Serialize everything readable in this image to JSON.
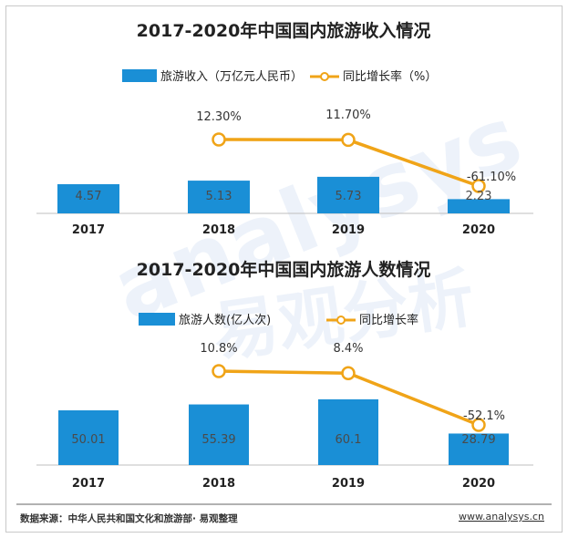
{
  "colors": {
    "bar": "#1a8fd6",
    "line": "#f0a418",
    "bar_label": "#4a4a4a",
    "axis_label": "#222222",
    "watermark": "#dfe9f6"
  },
  "watermark": {
    "latin": "analysys",
    "cn": "易观分析"
  },
  "chart_data": [
    {
      "type": "bar",
      "title": "2017-2020年中国国内旅游收入情况",
      "categories": [
        "2017",
        "2018",
        "2019",
        "2020"
      ],
      "series": [
        {
          "name": "旅游收入（万亿元人民币）",
          "type": "bar",
          "values": [
            4.57,
            5.13,
            5.73,
            2.23
          ],
          "labels": [
            "4.57",
            "5.13",
            "5.73",
            "2.23"
          ]
        },
        {
          "name": "同比增长率（%）",
          "type": "line",
          "values": [
            null,
            12.3,
            11.7,
            -61.1
          ],
          "labels": [
            "",
            "12.30%",
            "11.70%",
            "-61.10%"
          ]
        }
      ],
      "legend_position": "top"
    },
    {
      "type": "bar",
      "title": "2017-2020年中国国内旅游人数情况",
      "categories": [
        "2017",
        "2018",
        "2019",
        "2020"
      ],
      "series": [
        {
          "name": "旅游人数(亿人次)",
          "type": "bar",
          "values": [
            50.01,
            55.39,
            60.1,
            28.79
          ],
          "labels": [
            "50.01",
            "55.39",
            "60.1",
            "28.79"
          ]
        },
        {
          "name": "同比增长率",
          "type": "line",
          "values": [
            null,
            10.8,
            8.4,
            -52.1
          ],
          "labels": [
            "",
            "10.8%",
            "8.4%",
            "-52.1%"
          ]
        }
      ],
      "legend_position": "top"
    }
  ],
  "footer": {
    "source": "数据来源：中华人民共和国文化和旅游部· 易观整理",
    "website": "www.analysys.cn"
  }
}
